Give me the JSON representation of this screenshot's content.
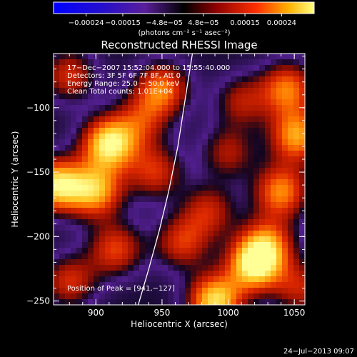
{
  "chart_data": {
    "type": "heatmap",
    "title": "Reconstructed RHESSI Image",
    "xlabel": "Heliocentric X (arcsec)",
    "ylabel": "Heliocentric Y (arcsec)",
    "xlim": [
      868,
      1058
    ],
    "ylim": [
      -253,
      -58
    ],
    "xticks": [
      900,
      950,
      1000,
      1050
    ],
    "yticks": [
      -100,
      -150,
      -200,
      -250
    ],
    "xtick_labels": [
      "900",
      "950",
      "1000",
      "1050"
    ],
    "ytick_labels": [
      "−100",
      "−150",
      "−200",
      "−250"
    ],
    "colorbar": {
      "range": [
        -0.00032,
        0.00032
      ],
      "ticks": [
        -0.00024,
        -0.00015,
        -4.8e-05,
        4.8e-05,
        0.00015,
        0.00024
      ],
      "tick_labels": [
        "−0.00024",
        "−0.00015",
        "−4.8e−05",
        "4.8e−05",
        "0.00015",
        "0.00024"
      ],
      "unit_label": "(photons cm⁻² s⁻¹ asec⁻²)"
    },
    "annotations": [
      "17−Dec−2007 15:52:04.000 to 15:55:40.000",
      "Detectors: 3F 5F 6F 7F 8F, Att 0",
      "Energy Range: 25.0 − 50.0 keV",
      "Clean    Total counts: 1.01E+04",
      "Position of Peak = [941,−127]"
    ],
    "limb": [
      [
        973,
        -58
      ],
      [
        968,
        -90
      ],
      [
        962,
        -130
      ],
      [
        955,
        -165
      ],
      [
        948,
        -195
      ],
      [
        940,
        -225
      ],
      [
        932,
        -253
      ]
    ],
    "sources": [
      {
        "x": 910,
        "y": -128,
        "amp": 1.0
      },
      {
        "x": 870,
        "y": -160,
        "amp": 0.95
      },
      {
        "x": 900,
        "y": -165,
        "amp": 0.8
      },
      {
        "x": 915,
        "y": -210,
        "amp": 0.6
      },
      {
        "x": 950,
        "y": -85,
        "amp": 0.7
      },
      {
        "x": 945,
        "y": -150,
        "amp": 0.55
      },
      {
        "x": 965,
        "y": -205,
        "amp": 0.55
      },
      {
        "x": 990,
        "y": -250,
        "amp": 0.95
      },
      {
        "x": 1020,
        "y": -222,
        "amp": 0.95
      },
      {
        "x": 1030,
        "y": -205,
        "amp": 0.6
      },
      {
        "x": 1040,
        "y": -165,
        "amp": 0.75
      },
      {
        "x": 1052,
        "y": -122,
        "amp": 0.8
      },
      {
        "x": 1045,
        "y": -85,
        "amp": 0.7
      },
      {
        "x": 1010,
        "y": -95,
        "amp": 0.45
      },
      {
        "x": 1000,
        "y": -135,
        "amp": 0.45
      },
      {
        "x": 985,
        "y": -180,
        "amp": 0.5
      },
      {
        "x": 880,
        "y": -75,
        "amp": 0.55
      },
      {
        "x": 880,
        "y": -235,
        "amp": 0.55
      },
      {
        "x": 1055,
        "y": -240,
        "amp": 0.5
      },
      {
        "x": 935,
        "y": -110,
        "amp": 0.45
      }
    ]
  },
  "footer": {
    "date": "24−Jul−2013 09:07"
  }
}
